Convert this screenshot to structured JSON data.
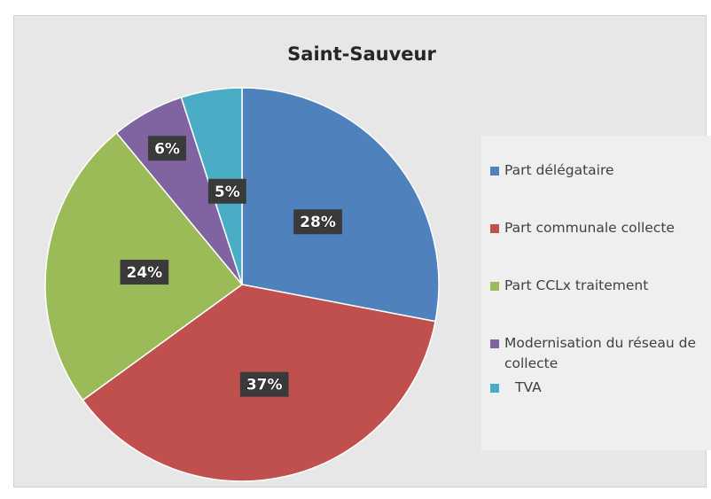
{
  "chart_data": {
    "type": "pie",
    "title": "Saint-Sauveur",
    "categories": [
      "Part délégataire",
      "Part communale collecte",
      "Part CCLx traitement",
      "Modernisation du réseau de collecte",
      "TVA"
    ],
    "values": [
      28,
      37,
      24,
      6,
      5
    ],
    "value_labels": [
      "28%",
      "37%",
      "24%",
      "6%",
      "5%"
    ],
    "colors": [
      "#4f81bd",
      "#c0504d",
      "#9bbb59",
      "#8064a2",
      "#4bacc6"
    ],
    "legend": "right"
  }
}
